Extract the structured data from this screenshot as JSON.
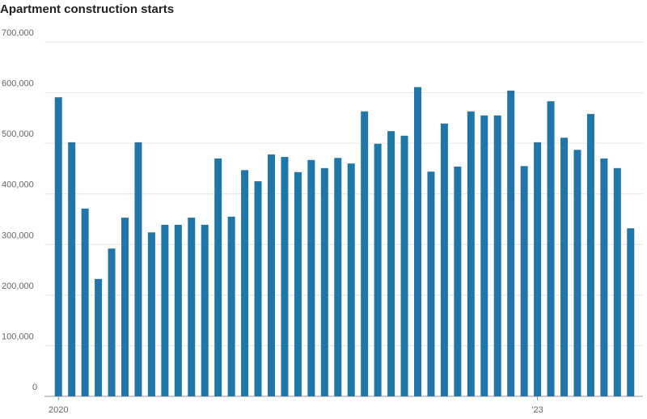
{
  "chart_data": {
    "type": "bar",
    "title": "Apartment construction starts",
    "categories": [
      "2020",
      null,
      null,
      null,
      null,
      null,
      null,
      null,
      null,
      null,
      null,
      null,
      null,
      null,
      null,
      null,
      null,
      null,
      null,
      null,
      null,
      null,
      null,
      null,
      null,
      null,
      null,
      null,
      null,
      null,
      null,
      null,
      null,
      null,
      null,
      null,
      "'23",
      null,
      null,
      null,
      null,
      null,
      null,
      null
    ],
    "values": [
      591000,
      502000,
      371000,
      232000,
      292000,
      353000,
      502000,
      324000,
      339000,
      339000,
      353000,
      339000,
      470000,
      355000,
      447000,
      425000,
      478000,
      473000,
      443000,
      467000,
      451000,
      471000,
      460000,
      563000,
      499000,
      524000,
      515000,
      611000,
      444000,
      539000,
      454000,
      563000,
      555000,
      555000,
      604000,
      455000,
      502000,
      583000,
      511000,
      487000,
      558000,
      470000,
      451000,
      332000
    ],
    "color": "#1f76a8",
    "ylim": [
      0,
      700000
    ],
    "yticks": [
      0,
      {
        "value": 100000,
        "label": "100,000"
      },
      {
        "value": 200000,
        "label": "200,000"
      },
      {
        "value": 300000,
        "label": "300,000"
      },
      {
        "value": 400000,
        "label": "400,000"
      },
      {
        "value": 500000,
        "label": "500,000"
      },
      {
        "value": 600000,
        "label": "600,000"
      },
      {
        "value": 700000,
        "label": "700,000"
      }
    ],
    "grid": true
  }
}
